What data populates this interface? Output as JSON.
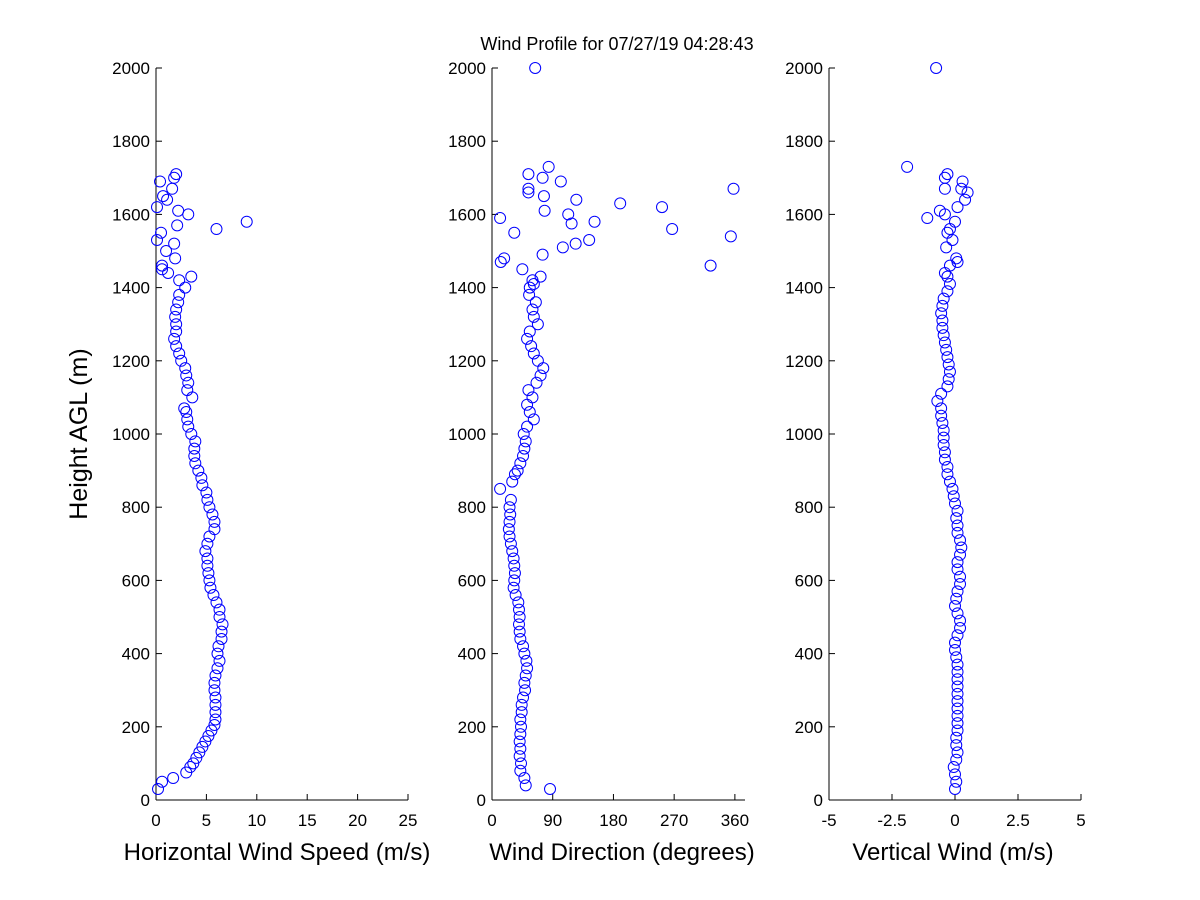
{
  "figure_title": "Wind Profile for  07/27/19 04:28:43",
  "colors": {
    "marker": "#0000ff",
    "axes": "#000000",
    "background": "#ffffff"
  },
  "chart_data": [
    {
      "type": "scatter",
      "id": "speed",
      "title": "",
      "xlabel": "Horizontal Wind Speed (m/s)",
      "ylabel": "Height AGL (m)",
      "xlim": [
        0,
        25
      ],
      "ylim": [
        0,
        2000
      ],
      "xticks": [
        0,
        5,
        10,
        15,
        20,
        25
      ],
      "xtick_labels": [
        "0",
        "5",
        "10",
        "15",
        "20",
        "25"
      ],
      "yticks": [
        0,
        200,
        400,
        600,
        800,
        1000,
        1200,
        1400,
        1600,
        1800,
        2000
      ],
      "ytick_labels": [
        "0",
        "200",
        "400",
        "600",
        "800",
        "1000",
        "1200",
        "1400",
        "1600",
        "1800",
        "2000"
      ],
      "grid": false,
      "marker": "open-circle",
      "points": [
        [
          0.2,
          30
        ],
        [
          0.6,
          50
        ],
        [
          1.7,
          60
        ],
        [
          3.0,
          75
        ],
        [
          3.4,
          90
        ],
        [
          3.7,
          100
        ],
        [
          4.0,
          115
        ],
        [
          4.3,
          130
        ],
        [
          4.6,
          145
        ],
        [
          4.9,
          160
        ],
        [
          5.2,
          175
        ],
        [
          5.5,
          190
        ],
        [
          5.8,
          205
        ],
        [
          5.9,
          220
        ],
        [
          5.9,
          240
        ],
        [
          5.9,
          260
        ],
        [
          5.9,
          280
        ],
        [
          5.8,
          300
        ],
        [
          5.8,
          320
        ],
        [
          5.9,
          340
        ],
        [
          6.1,
          360
        ],
        [
          6.3,
          380
        ],
        [
          6.1,
          400
        ],
        [
          6.2,
          420
        ],
        [
          6.5,
          440
        ],
        [
          6.5,
          460
        ],
        [
          6.6,
          480
        ],
        [
          6.3,
          500
        ],
        [
          6.3,
          520
        ],
        [
          6.0,
          540
        ],
        [
          5.7,
          560
        ],
        [
          5.4,
          580
        ],
        [
          5.3,
          600
        ],
        [
          5.2,
          620
        ],
        [
          5.1,
          640
        ],
        [
          5.1,
          660
        ],
        [
          4.9,
          680
        ],
        [
          5.1,
          700
        ],
        [
          5.3,
          720
        ],
        [
          5.8,
          740
        ],
        [
          5.8,
          760
        ],
        [
          5.6,
          780
        ],
        [
          5.3,
          800
        ],
        [
          5.1,
          820
        ],
        [
          5.0,
          840
        ],
        [
          4.6,
          860
        ],
        [
          4.5,
          880
        ],
        [
          4.2,
          900
        ],
        [
          3.9,
          920
        ],
        [
          3.8,
          940
        ],
        [
          3.8,
          960
        ],
        [
          3.9,
          980
        ],
        [
          3.5,
          1000
        ],
        [
          3.2,
          1020
        ],
        [
          3.1,
          1040
        ],
        [
          3.0,
          1060
        ],
        [
          2.8,
          1070
        ],
        [
          3.6,
          1100
        ],
        [
          3.1,
          1120
        ],
        [
          3.2,
          1140
        ],
        [
          3.0,
          1160
        ],
        [
          2.9,
          1180
        ],
        [
          2.5,
          1200
        ],
        [
          2.3,
          1220
        ],
        [
          2.0,
          1240
        ],
        [
          1.8,
          1260
        ],
        [
          2.0,
          1280
        ],
        [
          2.0,
          1300
        ],
        [
          1.9,
          1320
        ],
        [
          2.0,
          1340
        ],
        [
          2.2,
          1360
        ],
        [
          2.3,
          1380
        ],
        [
          2.9,
          1400
        ],
        [
          2.3,
          1420
        ],
        [
          3.5,
          1430
        ],
        [
          1.2,
          1440
        ],
        [
          0.6,
          1450
        ],
        [
          0.6,
          1460
        ],
        [
          1.9,
          1480
        ],
        [
          1.0,
          1500
        ],
        [
          1.8,
          1520
        ],
        [
          0.1,
          1530
        ],
        [
          0.5,
          1550
        ],
        [
          2.1,
          1570
        ],
        [
          6.0,
          1560
        ],
        [
          9.0,
          1580
        ],
        [
          3.2,
          1600
        ],
        [
          2.2,
          1610
        ],
        [
          0.1,
          1620
        ],
        [
          1.1,
          1640
        ],
        [
          0.7,
          1650
        ],
        [
          1.6,
          1670
        ],
        [
          0.4,
          1690
        ],
        [
          1.8,
          1700
        ],
        [
          2.0,
          1710
        ]
      ]
    },
    {
      "type": "scatter",
      "id": "direction",
      "title": "",
      "xlabel": "Wind Direction (degrees)",
      "ylabel": "",
      "xlim": [
        0,
        375
      ],
      "ylim": [
        0,
        2000
      ],
      "xticks": [
        0,
        90,
        180,
        270,
        360
      ],
      "xtick_labels": [
        "0",
        "90",
        "180",
        "270",
        "360"
      ],
      "yticks": [
        0,
        200,
        400,
        600,
        800,
        1000,
        1200,
        1400,
        1600,
        1800,
        2000
      ],
      "ytick_labels": [
        "0",
        "200",
        "400",
        "600",
        "800",
        "1000",
        "1200",
        "1400",
        "1600",
        "1800",
        "2000"
      ],
      "grid": false,
      "marker": "open-circle",
      "points": [
        [
          86,
          30
        ],
        [
          50,
          40
        ],
        [
          48,
          60
        ],
        [
          42,
          80
        ],
        [
          43,
          100
        ],
        [
          41,
          120
        ],
        [
          42,
          140
        ],
        [
          41,
          160
        ],
        [
          42,
          180
        ],
        [
          43,
          200
        ],
        [
          42,
          220
        ],
        [
          44,
          240
        ],
        [
          44,
          260
        ],
        [
          46,
          280
        ],
        [
          49,
          300
        ],
        [
          48,
          320
        ],
        [
          50,
          340
        ],
        [
          52,
          360
        ],
        [
          51,
          380
        ],
        [
          48,
          400
        ],
        [
          46,
          420
        ],
        [
          42,
          440
        ],
        [
          41,
          460
        ],
        [
          40,
          480
        ],
        [
          41,
          500
        ],
        [
          40,
          520
        ],
        [
          39,
          540
        ],
        [
          35,
          560
        ],
        [
          32,
          580
        ],
        [
          33,
          600
        ],
        [
          34,
          620
        ],
        [
          33,
          640
        ],
        [
          32,
          660
        ],
        [
          30,
          680
        ],
        [
          28,
          700
        ],
        [
          26,
          720
        ],
        [
          25,
          740
        ],
        [
          26,
          760
        ],
        [
          27,
          780
        ],
        [
          26,
          800
        ],
        [
          28,
          820
        ],
        [
          12,
          850
        ],
        [
          30,
          870
        ],
        [
          34,
          890
        ],
        [
          38,
          900
        ],
        [
          42,
          920
        ],
        [
          46,
          940
        ],
        [
          48,
          960
        ],
        [
          50,
          980
        ],
        [
          47,
          1000
        ],
        [
          52,
          1020
        ],
        [
          62,
          1040
        ],
        [
          56,
          1060
        ],
        [
          52,
          1080
        ],
        [
          60,
          1100
        ],
        [
          54,
          1120
        ],
        [
          66,
          1140
        ],
        [
          72,
          1160
        ],
        [
          76,
          1180
        ],
        [
          68,
          1200
        ],
        [
          62,
          1220
        ],
        [
          58,
          1240
        ],
        [
          52,
          1260
        ],
        [
          56,
          1280
        ],
        [
          68,
          1300
        ],
        [
          62,
          1320
        ],
        [
          60,
          1340
        ],
        [
          65,
          1360
        ],
        [
          55,
          1380
        ],
        [
          56,
          1400
        ],
        [
          62,
          1410
        ],
        [
          60,
          1420
        ],
        [
          72,
          1430
        ],
        [
          45,
          1450
        ],
        [
          13,
          1470
        ],
        [
          18,
          1480
        ],
        [
          75,
          1490
        ],
        [
          105,
          1510
        ],
        [
          124,
          1520
        ],
        [
          144,
          1530
        ],
        [
          33,
          1550
        ],
        [
          354,
          1540
        ],
        [
          267,
          1560
        ],
        [
          118,
          1575
        ],
        [
          152,
          1580
        ],
        [
          12,
          1590
        ],
        [
          113,
          1600
        ],
        [
          78,
          1610
        ],
        [
          252,
          1620
        ],
        [
          190,
          1630
        ],
        [
          125,
          1640
        ],
        [
          77,
          1650
        ],
        [
          54,
          1660
        ],
        [
          54,
          1670
        ],
        [
          358,
          1670
        ],
        [
          102,
          1690
        ],
        [
          75,
          1700
        ],
        [
          54,
          1710
        ],
        [
          84,
          1730
        ],
        [
          324,
          1460
        ],
        [
          64,
          2000
        ]
      ]
    },
    {
      "type": "scatter",
      "id": "vertical",
      "title": "",
      "xlabel": "Vertical Wind (m/s)",
      "ylabel": "",
      "xlim": [
        -5,
        5
      ],
      "ylim": [
        0,
        2000
      ],
      "xticks": [
        -5,
        -2.5,
        0,
        2.5,
        5
      ],
      "xtick_labels": [
        "-5",
        "-2.5",
        "0",
        "2.5",
        "5"
      ],
      "yticks": [
        0,
        200,
        400,
        600,
        800,
        1000,
        1200,
        1400,
        1600,
        1800,
        2000
      ],
      "ytick_labels": [
        "0",
        "200",
        "400",
        "600",
        "800",
        "1000",
        "1200",
        "1400",
        "1600",
        "1800",
        "2000"
      ],
      "grid": false,
      "marker": "open-circle",
      "points": [
        [
          0.0,
          30
        ],
        [
          0.05,
          50
        ],
        [
          0.0,
          70
        ],
        [
          -0.05,
          90
        ],
        [
          0.05,
          110
        ],
        [
          0.1,
          130
        ],
        [
          0.05,
          150
        ],
        [
          0.05,
          170
        ],
        [
          0.1,
          190
        ],
        [
          0.1,
          210
        ],
        [
          0.1,
          230
        ],
        [
          0.1,
          250
        ],
        [
          0.1,
          270
        ],
        [
          0.1,
          290
        ],
        [
          0.1,
          310
        ],
        [
          0.1,
          330
        ],
        [
          0.1,
          350
        ],
        [
          0.1,
          370
        ],
        [
          0.05,
          390
        ],
        [
          0.0,
          410
        ],
        [
          0.0,
          430
        ],
        [
          0.1,
          450
        ],
        [
          0.2,
          470
        ],
        [
          0.2,
          490
        ],
        [
          0.1,
          510
        ],
        [
          0.0,
          530
        ],
        [
          0.05,
          550
        ],
        [
          0.1,
          570
        ],
        [
          0.2,
          590
        ],
        [
          0.2,
          610
        ],
        [
          0.1,
          630
        ],
        [
          0.1,
          650
        ],
        [
          0.2,
          670
        ],
        [
          0.25,
          690
        ],
        [
          0.2,
          710
        ],
        [
          0.1,
          730
        ],
        [
          0.1,
          750
        ],
        [
          0.05,
          770
        ],
        [
          0.1,
          790
        ],
        [
          0.0,
          810
        ],
        [
          -0.05,
          830
        ],
        [
          -0.1,
          850
        ],
        [
          -0.2,
          870
        ],
        [
          -0.3,
          890
        ],
        [
          -0.3,
          910
        ],
        [
          -0.4,
          930
        ],
        [
          -0.4,
          950
        ],
        [
          -0.45,
          970
        ],
        [
          -0.45,
          990
        ],
        [
          -0.45,
          1010
        ],
        [
          -0.5,
          1030
        ],
        [
          -0.55,
          1050
        ],
        [
          -0.55,
          1070
        ],
        [
          -0.7,
          1090
        ],
        [
          -0.55,
          1110
        ],
        [
          -0.3,
          1130
        ],
        [
          -0.25,
          1150
        ],
        [
          -0.2,
          1170
        ],
        [
          -0.25,
          1190
        ],
        [
          -0.3,
          1210
        ],
        [
          -0.35,
          1230
        ],
        [
          -0.4,
          1250
        ],
        [
          -0.45,
          1270
        ],
        [
          -0.5,
          1290
        ],
        [
          -0.5,
          1310
        ],
        [
          -0.55,
          1330
        ],
        [
          -0.5,
          1350
        ],
        [
          -0.45,
          1370
        ],
        [
          -0.3,
          1390
        ],
        [
          -0.2,
          1410
        ],
        [
          -0.3,
          1430
        ],
        [
          -0.4,
          1440
        ],
        [
          -0.2,
          1460
        ],
        [
          0.05,
          1480
        ],
        [
          0.1,
          1470
        ],
        [
          -0.35,
          1510
        ],
        [
          -0.1,
          1530
        ],
        [
          -0.3,
          1550
        ],
        [
          -0.2,
          1560
        ],
        [
          0.0,
          1580
        ],
        [
          -1.1,
          1590
        ],
        [
          -0.6,
          1610
        ],
        [
          0.1,
          1620
        ],
        [
          -0.4,
          1600
        ],
        [
          0.4,
          1640
        ],
        [
          0.5,
          1660
        ],
        [
          0.25,
          1670
        ],
        [
          -0.4,
          1670
        ],
        [
          0.3,
          1690
        ],
        [
          -0.3,
          1710
        ],
        [
          -0.4,
          1700
        ],
        [
          -1.9,
          1730
        ],
        [
          -0.75,
          2000
        ]
      ]
    }
  ]
}
